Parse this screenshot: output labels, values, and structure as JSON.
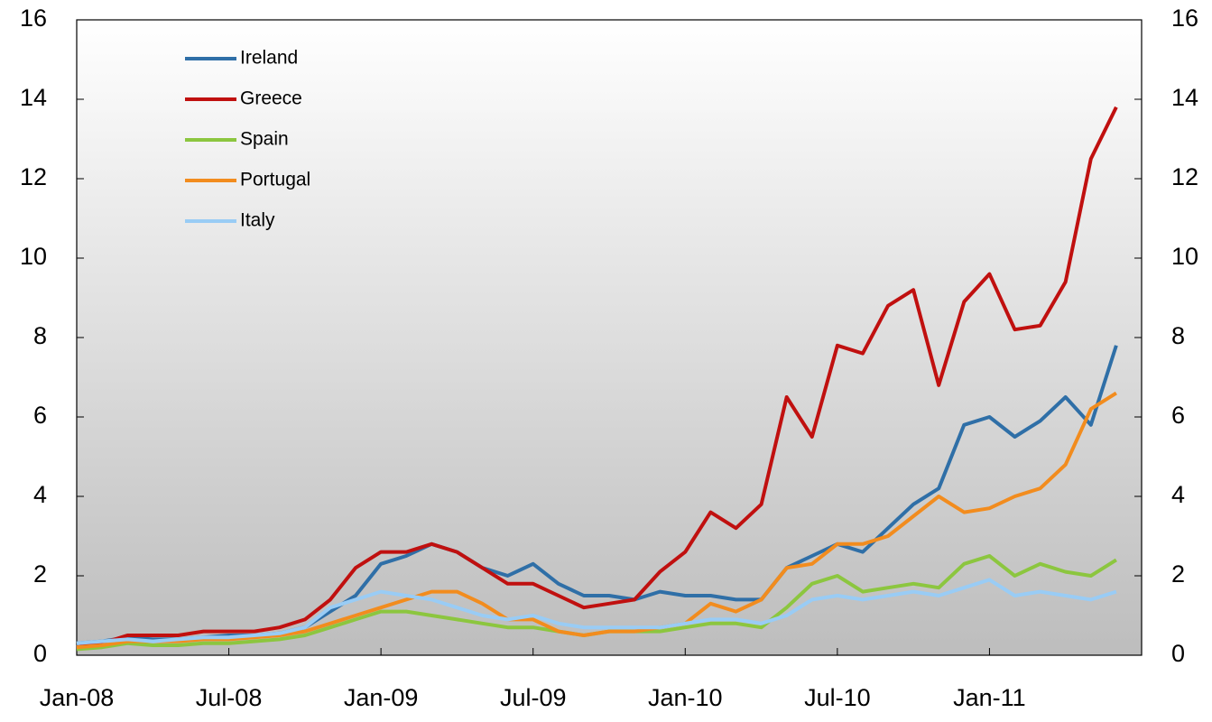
{
  "chart_data": {
    "type": "line",
    "categories": [
      "Jan-08",
      null,
      null,
      null,
      null,
      null,
      "Jul-08",
      null,
      null,
      null,
      null,
      null,
      "Jan-09",
      null,
      null,
      null,
      null,
      null,
      "Jul-09",
      null,
      null,
      null,
      null,
      null,
      "Jan-10",
      null,
      null,
      null,
      null,
      null,
      "Jul-10",
      null,
      null,
      null,
      null,
      null,
      "Jan-11",
      null,
      null,
      null,
      null,
      null
    ],
    "series": [
      {
        "name": "Ireland",
        "color": "#2f6fa7",
        "values": [
          0.3,
          0.35,
          0.45,
          0.4,
          0.4,
          0.45,
          0.5,
          0.5,
          0.55,
          0.7,
          1.1,
          1.5,
          2.3,
          2.5,
          2.8,
          2.6,
          2.2,
          2.0,
          2.3,
          1.8,
          1.5,
          1.5,
          1.4,
          1.6,
          1.5,
          1.5,
          1.4,
          1.4,
          2.2,
          2.5,
          2.8,
          2.6,
          3.2,
          3.8,
          4.2,
          5.8,
          6.0,
          5.5,
          5.9,
          6.5,
          5.8,
          7.8
        ]
      },
      {
        "name": "Greece",
        "color": "#c0100f",
        "values": [
          0.2,
          0.3,
          0.5,
          0.5,
          0.5,
          0.6,
          0.6,
          0.6,
          0.7,
          0.9,
          1.4,
          2.2,
          2.6,
          2.6,
          2.8,
          2.6,
          2.2,
          1.8,
          1.8,
          1.5,
          1.2,
          1.3,
          1.4,
          2.1,
          2.6,
          3.6,
          3.2,
          3.8,
          6.5,
          5.5,
          7.8,
          7.6,
          8.8,
          9.2,
          6.8,
          8.9,
          9.6,
          8.2,
          8.3,
          9.4,
          12.5,
          13.8
        ]
      },
      {
        "name": "Spain",
        "color": "#8cc63f",
        "values": [
          0.15,
          0.2,
          0.3,
          0.25,
          0.25,
          0.3,
          0.3,
          0.35,
          0.4,
          0.5,
          0.7,
          0.9,
          1.1,
          1.1,
          1.0,
          0.9,
          0.8,
          0.7,
          0.7,
          0.6,
          0.5,
          0.6,
          0.6,
          0.6,
          0.7,
          0.8,
          0.8,
          0.7,
          1.2,
          1.8,
          2.0,
          1.6,
          1.7,
          1.8,
          1.7,
          2.3,
          2.5,
          2.0,
          2.3,
          2.1,
          2.0,
          2.4
        ]
      },
      {
        "name": "Portugal",
        "color": "#f28c1e",
        "values": [
          0.2,
          0.25,
          0.35,
          0.35,
          0.35,
          0.4,
          0.4,
          0.45,
          0.5,
          0.6,
          0.8,
          1.0,
          1.2,
          1.4,
          1.6,
          1.6,
          1.3,
          0.9,
          0.9,
          0.6,
          0.5,
          0.6,
          0.6,
          0.7,
          0.8,
          1.3,
          1.1,
          1.4,
          2.2,
          2.3,
          2.8,
          2.8,
          3.0,
          3.5,
          4.0,
          3.6,
          3.7,
          4.0,
          4.2,
          4.8,
          6.2,
          6.6
        ]
      },
      {
        "name": "Italy",
        "color": "#99ccf5",
        "values": [
          0.3,
          0.35,
          0.4,
          0.35,
          0.4,
          0.45,
          0.45,
          0.5,
          0.55,
          0.7,
          1.2,
          1.4,
          1.6,
          1.5,
          1.4,
          1.2,
          1.0,
          0.9,
          1.0,
          0.8,
          0.7,
          0.7,
          0.7,
          0.7,
          0.8,
          0.9,
          0.9,
          0.8,
          1.0,
          1.4,
          1.5,
          1.4,
          1.5,
          1.6,
          1.5,
          1.7,
          1.9,
          1.5,
          1.6,
          1.5,
          1.4,
          1.6
        ]
      }
    ],
    "ylim": [
      0,
      16
    ],
    "yticks": [
      0,
      2,
      4,
      6,
      8,
      10,
      12,
      14,
      16
    ],
    "y2lim": [
      0,
      16
    ],
    "y2ticks": [
      0,
      2,
      4,
      6,
      8,
      10,
      12,
      14,
      16
    ],
    "legend": "upper-left",
    "grid": false
  }
}
